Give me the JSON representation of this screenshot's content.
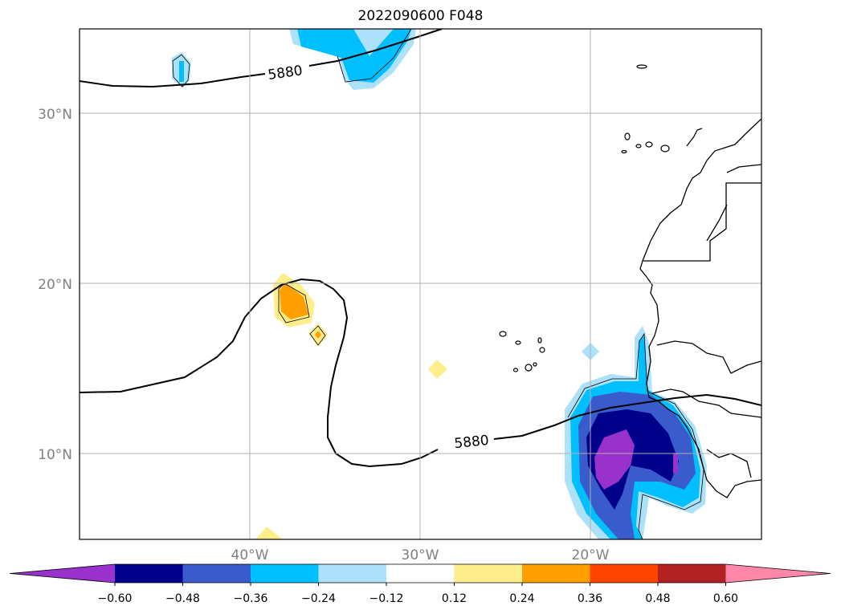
{
  "title": "2022090600 F048",
  "latitude_labels": [
    "30°N",
    "20°N",
    "10°N"
  ],
  "longitude_labels": [
    "40°W",
    "30°W",
    "20°W"
  ],
  "contour": {
    "value_label": "5880",
    "color": "#000000"
  },
  "colorbar": {
    "ticks": [
      "−0.60",
      "−0.48",
      "−0.36",
      "−0.24",
      "−0.12",
      "0.12",
      "0.24",
      "0.36",
      "0.48",
      "0.60"
    ],
    "colors": [
      "#9932CC",
      "#00008B",
      "#3A5BCC",
      "#00BFFF",
      "#ADE1FA",
      "#FFFFFF",
      "#FFEE8C",
      "#FFA000",
      "#FF4500",
      "#B22222",
      "#FF88AA"
    ]
  },
  "shading": {
    "deep_blue": "#00008B",
    "mid_blue": "#3A5BCC",
    "sky_blue": "#00BFFF",
    "pale_blue": "#ADE1FA",
    "purple": "#9932CC",
    "pale_yellow": "#FFEE8C",
    "orange": "#FFA000"
  },
  "grid_color": "#b0b0b0"
}
